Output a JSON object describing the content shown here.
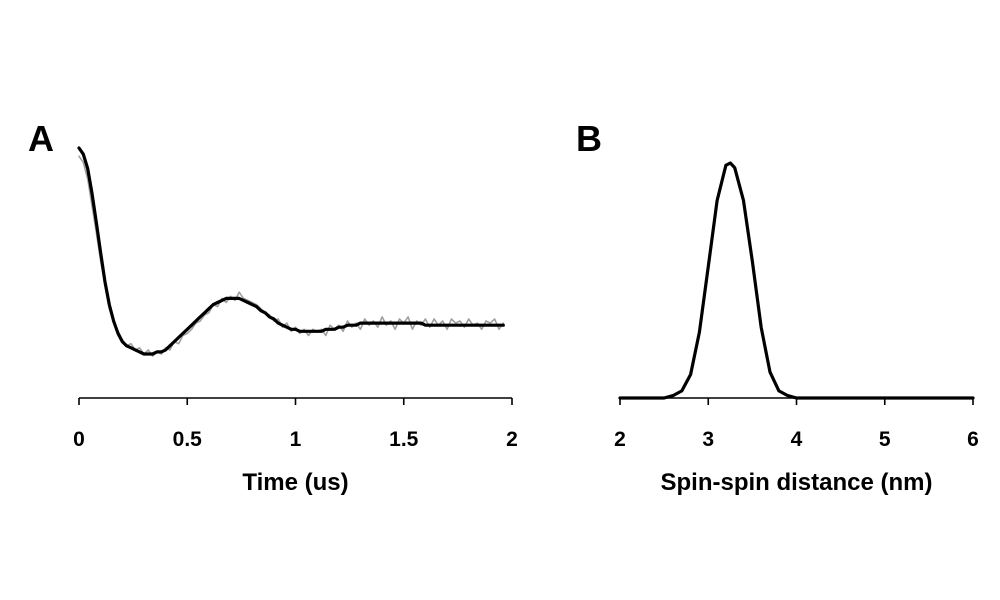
{
  "chart_data": [
    {
      "panel": "A",
      "type": "line",
      "xlabel": "Time (us)",
      "ylabel": "",
      "xlim": [
        0,
        2
      ],
      "ylim": [
        0,
        1
      ],
      "x_ticks": [
        0,
        0.5,
        1,
        1.5,
        2
      ],
      "x_tick_labels": [
        "0",
        "0.5",
        "1",
        "1.5",
        "2"
      ],
      "grid": false,
      "series": [
        {
          "color": "#a0a0a0",
          "x": [
            0.0,
            0.02,
            0.04,
            0.06,
            0.08,
            0.1,
            0.12,
            0.14,
            0.16,
            0.18,
            0.2,
            0.22,
            0.24,
            0.26,
            0.28,
            0.3,
            0.32,
            0.34,
            0.36,
            0.38,
            0.4,
            0.42,
            0.44,
            0.46,
            0.48,
            0.5,
            0.52,
            0.54,
            0.56,
            0.58,
            0.6,
            0.62,
            0.64,
            0.66,
            0.68,
            0.7,
            0.72,
            0.74,
            0.76,
            0.78,
            0.8,
            0.82,
            0.84,
            0.86,
            0.88,
            0.9,
            0.92,
            0.94,
            0.96,
            0.98,
            1.0,
            1.02,
            1.04,
            1.06,
            1.08,
            1.1,
            1.12,
            1.14,
            1.16,
            1.18,
            1.2,
            1.22,
            1.24,
            1.26,
            1.28,
            1.3,
            1.32,
            1.34,
            1.36,
            1.38,
            1.4,
            1.42,
            1.44,
            1.46,
            1.48,
            1.5,
            1.52,
            1.54,
            1.56,
            1.58,
            1.6,
            1.62,
            1.64,
            1.66,
            1.68,
            1.7,
            1.72,
            1.74,
            1.76,
            1.78,
            1.8,
            1.82,
            1.84,
            1.86,
            1.88,
            1.9,
            1.92,
            1.94,
            1.96
          ],
          "y": [
            0.96,
            0.93,
            0.85,
            0.72,
            0.59,
            0.45,
            0.33,
            0.22,
            0.16,
            0.11,
            0.07,
            0.04,
            0.05,
            0.02,
            0.03,
            0.0,
            0.02,
            -0.01,
            0.01,
            0.0,
            0.03,
            0.02,
            0.06,
            0.05,
            0.09,
            0.1,
            0.12,
            0.15,
            0.16,
            0.19,
            0.2,
            0.24,
            0.23,
            0.27,
            0.25,
            0.28,
            0.26,
            0.3,
            0.27,
            0.26,
            0.25,
            0.24,
            0.22,
            0.2,
            0.19,
            0.16,
            0.17,
            0.13,
            0.15,
            0.11,
            0.13,
            0.1,
            0.12,
            0.09,
            0.12,
            0.11,
            0.12,
            0.09,
            0.14,
            0.12,
            0.14,
            0.11,
            0.16,
            0.13,
            0.15,
            0.12,
            0.17,
            0.14,
            0.16,
            0.13,
            0.18,
            0.14,
            0.16,
            0.12,
            0.17,
            0.15,
            0.18,
            0.12,
            0.16,
            0.14,
            0.17,
            0.13,
            0.17,
            0.14,
            0.16,
            0.12,
            0.17,
            0.15,
            0.16,
            0.13,
            0.17,
            0.14,
            0.15,
            0.12,
            0.16,
            0.15,
            0.17,
            0.12,
            0.15
          ]
        },
        {
          "color": "#000000",
          "x": [
            0.0,
            0.02,
            0.04,
            0.06,
            0.08,
            0.1,
            0.12,
            0.14,
            0.16,
            0.18,
            0.2,
            0.22,
            0.24,
            0.26,
            0.28,
            0.3,
            0.32,
            0.34,
            0.36,
            0.38,
            0.4,
            0.42,
            0.44,
            0.46,
            0.48,
            0.5,
            0.52,
            0.54,
            0.56,
            0.58,
            0.6,
            0.62,
            0.64,
            0.66,
            0.68,
            0.7,
            0.72,
            0.74,
            0.76,
            0.78,
            0.8,
            0.82,
            0.84,
            0.86,
            0.88,
            0.9,
            0.92,
            0.94,
            0.96,
            0.98,
            1.0,
            1.02,
            1.04,
            1.06,
            1.08,
            1.1,
            1.12,
            1.14,
            1.16,
            1.18,
            1.2,
            1.22,
            1.24,
            1.26,
            1.28,
            1.3,
            1.32,
            1.34,
            1.36,
            1.38,
            1.4,
            1.42,
            1.44,
            1.46,
            1.48,
            1.5,
            1.52,
            1.54,
            1.56,
            1.58,
            1.6,
            1.62,
            1.64,
            1.66,
            1.68,
            1.7,
            1.72,
            1.74,
            1.76,
            1.78,
            1.8,
            1.82,
            1.84,
            1.86,
            1.88,
            1.9,
            1.92,
            1.94,
            1.96
          ],
          "y": [
            1.0,
            0.97,
            0.9,
            0.78,
            0.64,
            0.49,
            0.35,
            0.24,
            0.16,
            0.1,
            0.06,
            0.04,
            0.03,
            0.02,
            0.01,
            0.0,
            0.0,
            0.0,
            0.01,
            0.01,
            0.02,
            0.04,
            0.06,
            0.08,
            0.1,
            0.12,
            0.14,
            0.16,
            0.18,
            0.2,
            0.22,
            0.24,
            0.25,
            0.26,
            0.27,
            0.27,
            0.27,
            0.27,
            0.26,
            0.25,
            0.24,
            0.23,
            0.21,
            0.2,
            0.18,
            0.17,
            0.15,
            0.14,
            0.13,
            0.12,
            0.12,
            0.11,
            0.11,
            0.11,
            0.11,
            0.11,
            0.11,
            0.12,
            0.12,
            0.12,
            0.13,
            0.13,
            0.14,
            0.14,
            0.14,
            0.15,
            0.15,
            0.15,
            0.15,
            0.15,
            0.15,
            0.15,
            0.15,
            0.15,
            0.15,
            0.15,
            0.15,
            0.15,
            0.15,
            0.15,
            0.14,
            0.14,
            0.14,
            0.14,
            0.14,
            0.14,
            0.14,
            0.14,
            0.14,
            0.14,
            0.14,
            0.14,
            0.14,
            0.14,
            0.14,
            0.14,
            0.14,
            0.14,
            0.14
          ]
        }
      ]
    },
    {
      "panel": "B",
      "type": "line",
      "xlabel": "Spin-spin distance (nm)",
      "ylabel": "",
      "xlim": [
        2,
        6
      ],
      "ylim": [
        0,
        1
      ],
      "x_ticks": [
        2,
        3,
        4,
        5,
        6
      ],
      "x_tick_labels": [
        "2",
        "3",
        "4",
        "5",
        "6"
      ],
      "grid": false,
      "series": [
        {
          "color": "#000000",
          "x": [
            2.0,
            2.5,
            2.6,
            2.7,
            2.8,
            2.9,
            3.0,
            3.1,
            3.2,
            3.25,
            3.3,
            3.4,
            3.5,
            3.6,
            3.7,
            3.8,
            3.9,
            4.0,
            6.0
          ],
          "y": [
            0.0,
            0.0,
            0.01,
            0.03,
            0.1,
            0.28,
            0.56,
            0.84,
            0.99,
            1.0,
            0.98,
            0.84,
            0.58,
            0.3,
            0.11,
            0.03,
            0.01,
            0.0,
            0.0
          ]
        }
      ]
    }
  ],
  "panels": {
    "a_letter": "A",
    "b_letter": "B"
  }
}
